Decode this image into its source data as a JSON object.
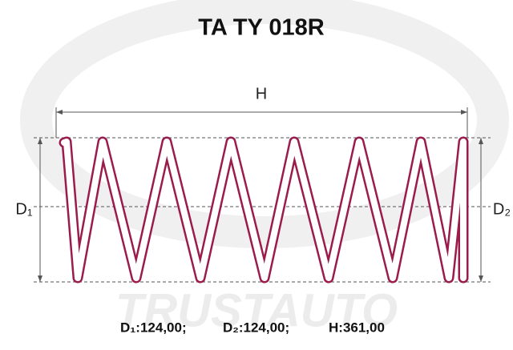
{
  "title": "TA TY 018R",
  "watermark": "TRUSTAUTO",
  "dimensions": {
    "height_label": "H",
    "d1_label": "D₁",
    "d2_label": "D₂"
  },
  "specs": [
    "D₁:124,00;",
    "D₂:124,00;",
    "H:361,00"
  ]
}
